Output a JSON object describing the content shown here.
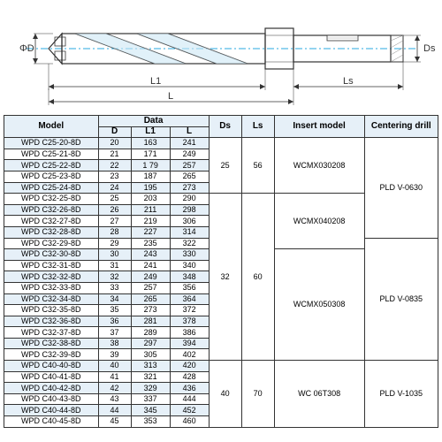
{
  "diagram": {
    "labels": {
      "phiD": "ΦD",
      "L1": "L1",
      "L": "L",
      "Ls": "Ls",
      "Ds": "Ds"
    },
    "stroke": "#333333",
    "accent": "#2aa9e0",
    "hatch": "#888888"
  },
  "table": {
    "headers": {
      "model": "Model",
      "data": "Data",
      "d": "D",
      "l1": "L1",
      "l": "L",
      "ds": "Ds",
      "ls": "Ls",
      "insert": "Insert model",
      "centering": "Centering drill"
    },
    "groups": [
      {
        "ds": "25",
        "ls": "56",
        "rows": [
          {
            "model": "WPD C25-20-8D",
            "d": "20",
            "l1": "163",
            "l": "241",
            "alt": true
          },
          {
            "model": "WPD C25-21-8D",
            "d": "21",
            "l1": "171",
            "l": "249",
            "alt": false
          },
          {
            "model": "WPD C25-22-8D",
            "d": "22",
            "l1": "1 79",
            "l": "257",
            "alt": true
          },
          {
            "model": "WPD C25-23-8D",
            "d": "23",
            "l1": "187",
            "l": "265",
            "alt": false
          },
          {
            "model": "WPD C25-24-8D",
            "d": "24",
            "l1": "195",
            "l": "273",
            "alt": true
          }
        ],
        "inserts": [
          {
            "label": "WCMX030208",
            "span": 5
          }
        ],
        "centers": [
          {
            "label": "PLD  V-0630",
            "span": 9,
            "overflowNext": true
          }
        ]
      },
      {
        "ds": "32",
        "ls": "60",
        "rows": [
          {
            "model": "WPD C32-25-8D",
            "d": "25",
            "l1": "203",
            "l": "290",
            "alt": false
          },
          {
            "model": "WPD C32-26-8D",
            "d": "26",
            "l1": "211",
            "l": "298",
            "alt": true
          },
          {
            "model": "WPD C32-27-8D",
            "d": "27",
            "l1": "219",
            "l": "306",
            "alt": false
          },
          {
            "model": "WPD C32-28-8D",
            "d": "28",
            "l1": "227",
            "l": "314",
            "alt": true
          },
          {
            "model": "WPD C32-29-8D",
            "d": "29",
            "l1": "235",
            "l": "322",
            "alt": false
          },
          {
            "model": "WPD C32-30-8D",
            "d": "30",
            "l1": "243",
            "l": "330",
            "alt": true
          },
          {
            "model": "WPD C32-31-8D",
            "d": "31",
            "l1": "241",
            "l": "340",
            "alt": false
          },
          {
            "model": "WPD C32-32-8D",
            "d": "32",
            "l1": "249",
            "l": "348",
            "alt": true
          },
          {
            "model": "WPD C32-33-8D",
            "d": "33",
            "l1": "257",
            "l": "356",
            "alt": false
          },
          {
            "model": "WPD C32-34-8D",
            "d": "34",
            "l1": "265",
            "l": "364",
            "alt": true
          },
          {
            "model": "WPD C32-35-8D",
            "d": "35",
            "l1": "273",
            "l": "372",
            "alt": false
          },
          {
            "model": "WPD C32-36-8D",
            "d": "36",
            "l1": "281",
            "l": "378",
            "alt": true
          },
          {
            "model": "WPD C32-37-8D",
            "d": "37",
            "l1": "289",
            "l": "386",
            "alt": false
          },
          {
            "model": "WPD C32-38-8D",
            "d": "38",
            "l1": "297",
            "l": "394",
            "alt": true
          },
          {
            "model": "WPD C32-39-8D",
            "d": "39",
            "l1": "305",
            "l": "402",
            "alt": false
          }
        ],
        "inserts": [
          {
            "label": "WCMX040208",
            "span": 6,
            "startOffset": 4
          },
          {
            "label": "WCMX050308",
            "span": 5
          }
        ],
        "centers": [
          {
            "label": "PLD  V-0835",
            "span": 10,
            "startOffset": 4
          }
        ]
      },
      {
        "ds": "40",
        "ls": "70",
        "rows": [
          {
            "model": "WPD C40-40-8D",
            "d": "40",
            "l1": "313",
            "l": "420",
            "alt": true
          },
          {
            "model": "WPD C40-41-8D",
            "d": "41",
            "l1": "321",
            "l": "428",
            "alt": false
          },
          {
            "model": "WPD C40-42-8D",
            "d": "42",
            "l1": "329",
            "l": "436",
            "alt": true
          },
          {
            "model": "WPD C40-43-8D",
            "d": "43",
            "l1": "337",
            "l": "444",
            "alt": false
          },
          {
            "model": "WPD C40-44-8D",
            "d": "44",
            "l1": "345",
            "l": "452",
            "alt": true
          },
          {
            "model": "WPD C40-45-8D",
            "d": "45",
            "l1": "353",
            "l": "460",
            "alt": false
          }
        ],
        "inserts": [
          {
            "label": "WC    06T308",
            "span": 6
          }
        ],
        "centers": [
          {
            "label": "PLD  V-1035",
            "span": 6
          }
        ]
      }
    ]
  }
}
